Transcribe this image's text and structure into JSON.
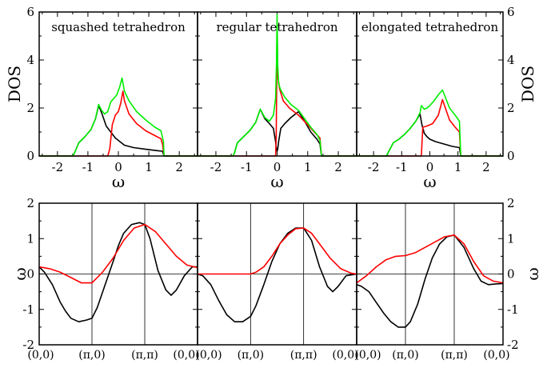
{
  "chart_data": [
    {
      "type": "line",
      "title": "squashed tetrahedron",
      "xlabel": "ω",
      "ylabel": "DOS",
      "xlim": [
        -2.6,
        2.6
      ],
      "ylim": [
        0,
        6
      ],
      "xticks": [
        -2,
        -1,
        0,
        1,
        2
      ],
      "yticks": [
        0,
        2,
        4,
        6
      ],
      "series": [
        {
          "color": "#000000",
          "x": [
            -2.6,
            -1.5,
            -1.45,
            -1.3,
            -1.1,
            -0.9,
            -0.75,
            -0.65,
            -0.55,
            -0.4,
            -0.25,
            -0.1,
            0.05,
            0.2,
            0.5,
            0.9,
            1.3,
            1.45,
            1.5,
            2.6
          ],
          "y": [
            0,
            0,
            0.1,
            0.55,
            0.8,
            1.1,
            1.55,
            2.1,
            1.8,
            1.25,
            1.0,
            0.75,
            0.6,
            0.45,
            0.35,
            0.28,
            0.22,
            0.2,
            0,
            0
          ]
        },
        {
          "color": "#ff0000",
          "x": [
            -2.6,
            -0.35,
            -0.28,
            -0.2,
            -0.1,
            0.0,
            0.08,
            0.15,
            0.2,
            0.35,
            0.6,
            0.9,
            1.2,
            1.4,
            1.45,
            1.5,
            2.6
          ],
          "y": [
            0,
            0,
            0.3,
            1.3,
            1.7,
            1.85,
            2.2,
            2.7,
            2.3,
            1.75,
            1.35,
            1.05,
            0.85,
            0.72,
            0.5,
            0,
            0
          ]
        },
        {
          "color": "#00ee00",
          "x": [
            -2.6,
            -1.5,
            -1.45,
            -1.3,
            -1.1,
            -0.9,
            -0.75,
            -0.65,
            -0.55,
            -0.45,
            -0.35,
            -0.25,
            -0.15,
            -0.05,
            0.05,
            0.12,
            0.2,
            0.35,
            0.6,
            0.9,
            1.2,
            1.4,
            1.48,
            1.5,
            2.6
          ],
          "y": [
            0,
            0,
            0.1,
            0.55,
            0.8,
            1.1,
            1.55,
            2.15,
            1.9,
            1.75,
            1.85,
            2.25,
            2.4,
            2.55,
            2.9,
            3.25,
            2.7,
            2.3,
            1.85,
            1.5,
            1.2,
            1.05,
            0.6,
            0,
            0
          ]
        }
      ]
    },
    {
      "type": "line",
      "title": "regular tetrahedron",
      "xlabel": "ω",
      "ylabel": "",
      "xlim": [
        -2.6,
        2.6
      ],
      "ylim": [
        0,
        6
      ],
      "xticks": [
        -2,
        -1,
        0,
        1,
        2
      ],
      "yticks": [
        0,
        2,
        4,
        6
      ],
      "series": [
        {
          "color": "#000000",
          "x": [
            -2.6,
            -1.45,
            -1.4,
            -1.3,
            -1.1,
            -0.9,
            -0.7,
            -0.55,
            -0.4,
            -0.25,
            -0.12,
            -0.05,
            -0.02,
            0.0,
            0.02,
            0.05,
            0.12,
            0.25,
            0.45,
            0.7,
            0.9,
            1.1,
            1.3,
            1.4,
            1.45,
            2.6
          ],
          "y": [
            0,
            0,
            0.1,
            0.55,
            0.8,
            1.05,
            1.4,
            1.95,
            1.55,
            1.35,
            1.15,
            0.6,
            0.3,
            0.2,
            0.3,
            0.6,
            1.15,
            1.35,
            1.6,
            1.85,
            1.45,
            1.0,
            0.7,
            0.5,
            0,
            0
          ]
        },
        {
          "color": "#ff0000",
          "x": [
            -2.6,
            -0.05,
            -0.03,
            -0.01,
            0.0,
            0.01,
            0.03,
            0.08,
            0.2,
            0.4,
            0.7,
            1.0,
            1.25,
            1.4,
            1.45,
            2.6
          ],
          "y": [
            0,
            0,
            0.8,
            3.5,
            5.6,
            4.0,
            3.3,
            2.8,
            2.3,
            2.0,
            1.7,
            1.3,
            0.95,
            0.75,
            0,
            0
          ]
        },
        {
          "color": "#00ee00",
          "x": [
            -2.6,
            -1.45,
            -1.4,
            -1.3,
            -1.1,
            -0.9,
            -0.7,
            -0.55,
            -0.4,
            -0.25,
            -0.12,
            -0.05,
            -0.02,
            0.0,
            0.02,
            0.05,
            0.12,
            0.25,
            0.45,
            0.7,
            0.9,
            1.1,
            1.3,
            1.4,
            1.45,
            2.6
          ],
          "y": [
            0,
            0,
            0.1,
            0.55,
            0.8,
            1.05,
            1.4,
            1.95,
            1.6,
            1.45,
            1.7,
            2.4,
            3.8,
            5.9,
            3.8,
            3.0,
            2.75,
            2.45,
            2.15,
            1.9,
            1.55,
            1.2,
            0.9,
            0.65,
            0,
            0
          ]
        }
      ]
    },
    {
      "type": "line",
      "title": "elongated tetrahedron",
      "xlabel": "ω",
      "ylabel": "DOS",
      "xlim": [
        -2.6,
        2.6
      ],
      "ylim": [
        0,
        6
      ],
      "xticks": [
        -2,
        -1,
        0,
        1,
        2
      ],
      "yticks": [
        0,
        2,
        4,
        6
      ],
      "series": [
        {
          "color": "#000000",
          "x": [
            -2.6,
            -1.55,
            -1.5,
            -1.3,
            -1.1,
            -0.9,
            -0.7,
            -0.5,
            -0.35,
            -0.28,
            -0.2,
            -0.1,
            0.0,
            0.2,
            0.5,
            0.8,
            1.05,
            1.1,
            2.6
          ],
          "y": [
            0,
            0,
            0.1,
            0.55,
            0.7,
            0.9,
            1.15,
            1.45,
            1.75,
            1.3,
            0.95,
            0.8,
            0.7,
            0.6,
            0.5,
            0.4,
            0.35,
            0,
            0
          ]
        },
        {
          "color": "#ff0000",
          "x": [
            -2.6,
            -0.3,
            -0.28,
            -0.25,
            -0.1,
            0.1,
            0.3,
            0.45,
            0.55,
            0.7,
            0.9,
            1.05,
            1.1,
            2.6
          ],
          "y": [
            0,
            0,
            0.5,
            1.2,
            1.25,
            1.35,
            1.7,
            2.35,
            2.0,
            1.5,
            1.2,
            1.0,
            0,
            0
          ]
        },
        {
          "color": "#00ee00",
          "x": [
            -2.6,
            -1.55,
            -1.5,
            -1.3,
            -1.1,
            -0.9,
            -0.7,
            -0.5,
            -0.35,
            -0.3,
            -0.2,
            -0.1,
            0.0,
            0.15,
            0.3,
            0.45,
            0.55,
            0.7,
            0.9,
            1.05,
            1.1,
            2.6
          ],
          "y": [
            0,
            0,
            0.1,
            0.55,
            0.7,
            0.9,
            1.15,
            1.45,
            1.8,
            2.1,
            1.95,
            2.0,
            2.1,
            2.3,
            2.55,
            2.75,
            2.45,
            2.0,
            1.7,
            1.45,
            0,
            0
          ]
        }
      ]
    },
    {
      "type": "line",
      "xlabel": "",
      "ylabel": "ω",
      "ylim": [
        -2,
        2
      ],
      "yticks": [
        -2,
        -1,
        0,
        1,
        2
      ],
      "xticklabels": [
        "(0,0)",
        "(π,0)",
        "(π,π)",
        "(0,0)"
      ],
      "series": [
        {
          "color": "#000000",
          "x": [
            0,
            0.1,
            0.25,
            0.4,
            0.5,
            0.6,
            0.75,
            0.9,
            1.0,
            1.1,
            1.25,
            1.4,
            1.5,
            1.6,
            1.75,
            1.9,
            2.0,
            2.1,
            2.25,
            2.4,
            2.5,
            2.6,
            2.75,
            2.9,
            3.0
          ],
          "y": [
            0.2,
            0.05,
            -0.3,
            -0.8,
            -1.05,
            -1.25,
            -1.35,
            -1.3,
            -1.25,
            -0.95,
            -0.3,
            0.35,
            0.8,
            1.15,
            1.4,
            1.45,
            1.4,
            1.0,
            0.1,
            -0.45,
            -0.6,
            -0.45,
            -0.05,
            0.2,
            0.2
          ]
        },
        {
          "color": "#ff0000",
          "x": [
            0,
            0.2,
            0.4,
            0.6,
            0.8,
            1.0,
            1.2,
            1.4,
            1.6,
            1.8,
            2.0,
            2.2,
            2.4,
            2.6,
            2.8,
            3.0
          ],
          "y": [
            0.2,
            0.15,
            0.05,
            -0.1,
            -0.25,
            -0.25,
            0.05,
            0.45,
            0.95,
            1.3,
            1.4,
            1.2,
            0.85,
            0.5,
            0.25,
            0.18
          ]
        }
      ]
    },
    {
      "type": "line",
      "xlabel": "",
      "ylabel": "",
      "ylim": [
        -2,
        2
      ],
      "yticks": [
        -2,
        -1,
        0,
        1,
        2
      ],
      "xticklabels": [
        "(0,0)",
        "(π,0)",
        "(π,π)",
        "(0,0)"
      ],
      "series": [
        {
          "color": "#000000",
          "x": [
            0,
            0.1,
            0.25,
            0.4,
            0.55,
            0.7,
            0.85,
            1.0,
            1.1,
            1.25,
            1.4,
            1.55,
            1.7,
            1.85,
            2.0,
            2.15,
            2.3,
            2.45,
            2.55,
            2.65,
            2.8,
            3.0
          ],
          "y": [
            0,
            -0.05,
            -0.3,
            -0.75,
            -1.15,
            -1.35,
            -1.35,
            -1.2,
            -0.9,
            -0.3,
            0.35,
            0.85,
            1.15,
            1.3,
            1.3,
            0.95,
            0.2,
            -0.35,
            -0.5,
            -0.35,
            -0.05,
            0
          ]
        },
        {
          "color": "#ff0000",
          "x": [
            0,
            0.5,
            1.0,
            1.1,
            1.25,
            1.4,
            1.55,
            1.7,
            1.85,
            2.0,
            2.15,
            2.3,
            2.5,
            2.7,
            2.9,
            3.0
          ],
          "y": [
            0,
            0,
            0,
            0.05,
            0.2,
            0.5,
            0.85,
            1.1,
            1.28,
            1.3,
            1.15,
            0.85,
            0.45,
            0.15,
            0.02,
            0
          ]
        }
      ]
    },
    {
      "type": "line",
      "xlabel": "",
      "ylabel": "ω",
      "ylim": [
        -2,
        2
      ],
      "yticks": [
        -2,
        -1,
        0,
        1,
        2
      ],
      "xticklabels": [
        "(0,0)",
        "(π,0)",
        "(π,π)",
        "(0,0)"
      ],
      "series": [
        {
          "color": "#000000",
          "x": [
            0,
            0.1,
            0.25,
            0.4,
            0.55,
            0.7,
            0.85,
            1.0,
            1.1,
            1.25,
            1.4,
            1.55,
            1.7,
            1.85,
            2.0,
            2.2,
            2.4,
            2.55,
            2.7,
            2.85,
            3.0
          ],
          "y": [
            -0.3,
            -0.35,
            -0.5,
            -0.8,
            -1.1,
            -1.35,
            -1.5,
            -1.5,
            -1.35,
            -0.85,
            -0.15,
            0.45,
            0.85,
            1.05,
            1.1,
            0.75,
            0.15,
            -0.2,
            -0.3,
            -0.28,
            -0.27
          ]
        },
        {
          "color": "#ff0000",
          "x": [
            0,
            0.2,
            0.4,
            0.6,
            0.8,
            1.0,
            1.2,
            1.4,
            1.6,
            1.8,
            2.0,
            2.2,
            2.4,
            2.6,
            2.8,
            3.0
          ],
          "y": [
            -0.25,
            -0.05,
            0.2,
            0.4,
            0.5,
            0.52,
            0.6,
            0.75,
            0.9,
            1.05,
            1.1,
            0.85,
            0.35,
            -0.05,
            -0.2,
            -0.25
          ]
        }
      ]
    }
  ]
}
